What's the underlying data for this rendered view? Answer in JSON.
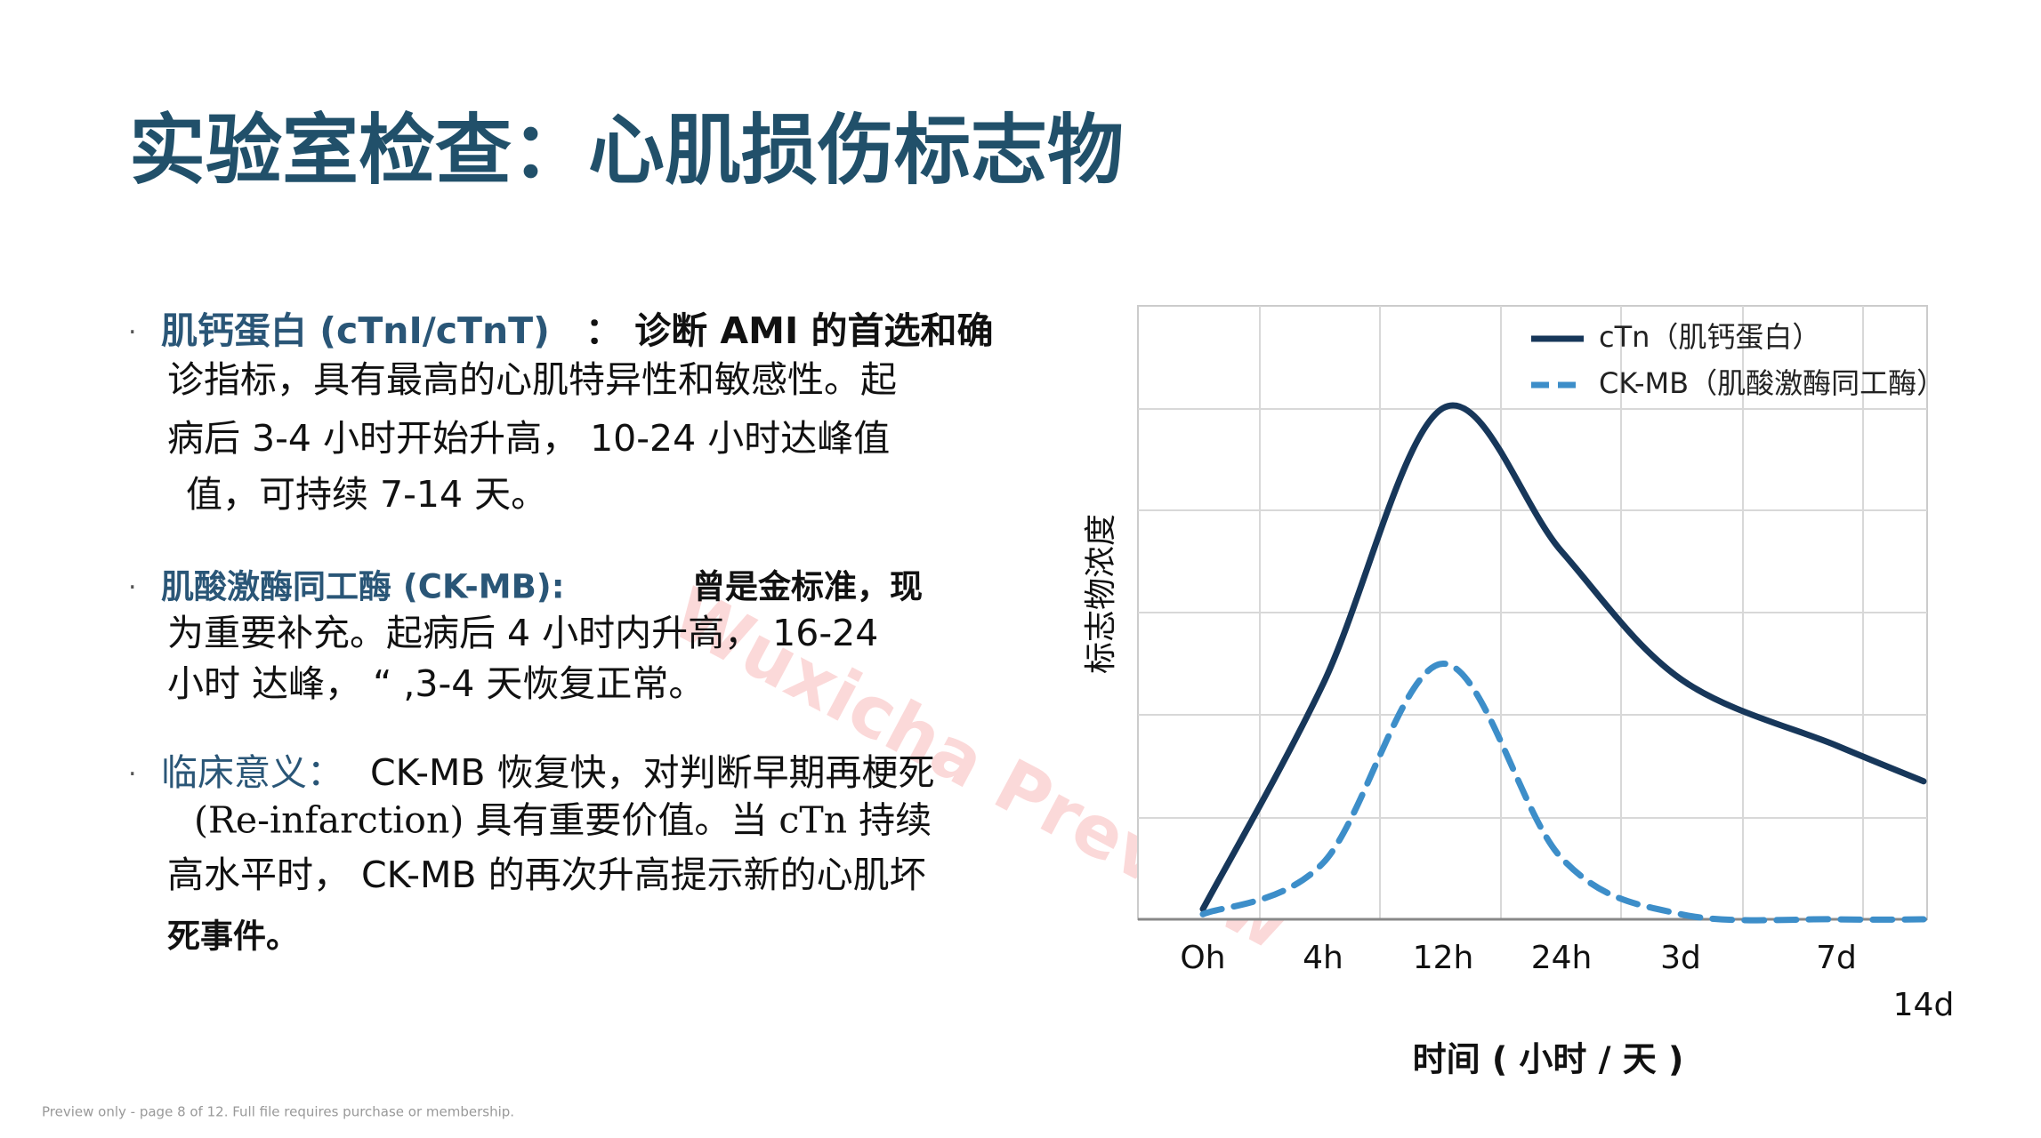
{
  "header": {
    "title": "实验室检查：心肌损伤标志物"
  },
  "bullets": [
    {
      "lines": [
        [
          "肌钙蛋白 (cTnI/cTnT)",
          "： 诊断 AMI 的首选和确"
        ],
        [
          "诊指标，具有最高的心肌特异性和敏感性。起"
        ],
        [
          "病后 3-4 小时开始升高， 10-24 小时达峰值"
        ],
        [
          "值，可持续 7-14 天。"
        ]
      ]
    },
    {
      "lines": [
        [
          "肌酸激酶同工酶 (CK-MB):",
          "曾是金标准，现"
        ],
        [
          "为重要补充。起病后 4 小时内升高， 16-24"
        ],
        [
          "小时 达峰， “ ,3-4 天恢复正常。"
        ]
      ]
    },
    {
      "lines": [
        [
          "临床意义：",
          "CK-MB 恢复快，对判断早期再梗死"
        ],
        [
          "(Re-infarction) 具有重要价值。当 cTn 持续"
        ],
        [
          "高水平时， CK-MB 的再次升高提示新的心肌坏"
        ],
        [
          "死事件。"
        ]
      ]
    }
  ],
  "watermark": "Wuxicha Preview",
  "footer": "Preview only - page 8 of 12. Full file requires purchase or membership.",
  "chart_data": {
    "type": "line",
    "x_label": "时间 ( 小时 / 天 )",
    "y_label": "标志物浓度",
    "categories": [
      "Oh",
      "4h",
      "12h",
      "24h",
      "3d",
      "7d",
      "14d"
    ],
    "ylim": [
      0,
      6
    ],
    "grid": true,
    "legend": "upper right",
    "series": [
      {
        "name": "cTn（肌钙蛋白）",
        "color": "#17375a",
        "style": "solid",
        "values": [
          0.1,
          2.3,
          5.0,
          3.6,
          2.35,
          1.7,
          1.35
        ]
      },
      {
        "name": "CK-MB（肌酸激酶同工酶）",
        "color": "#3d8ec9",
        "style": "dashed",
        "values": [
          0.05,
          0.55,
          2.5,
          0.6,
          0.05,
          0,
          0
        ]
      }
    ]
  }
}
